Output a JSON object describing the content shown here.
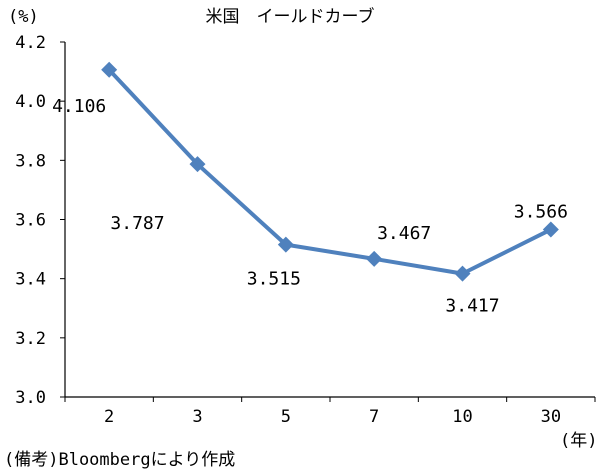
{
  "chart_data": {
    "type": "line",
    "title": "米国　イールドカーブ",
    "ylabel": "(%)",
    "xlabel": "(年)",
    "categories": [
      "2",
      "3",
      "5",
      "7",
      "10",
      "30"
    ],
    "series": [
      {
        "values": [
          4.106,
          3.787,
          3.515,
          3.467,
          3.417,
          3.566
        ],
        "data_labels": [
          "4.106",
          "3.787",
          "3.515",
          "3.467",
          "3.417",
          "3.566"
        ]
      }
    ],
    "ylim": [
      3.0,
      4.2
    ],
    "yticks": [
      3.0,
      3.2,
      3.4,
      3.6,
      3.8,
      4.0,
      4.2
    ],
    "ytick_labels": [
      "3.0",
      "3.2",
      "3.4",
      "3.6",
      "3.8",
      "4.0",
      "4.2"
    ],
    "grid": false,
    "legend": "none",
    "line_color": "#4F81BD",
    "marker": "diamond",
    "source_note": "(備考)Bloombergにより作成"
  }
}
